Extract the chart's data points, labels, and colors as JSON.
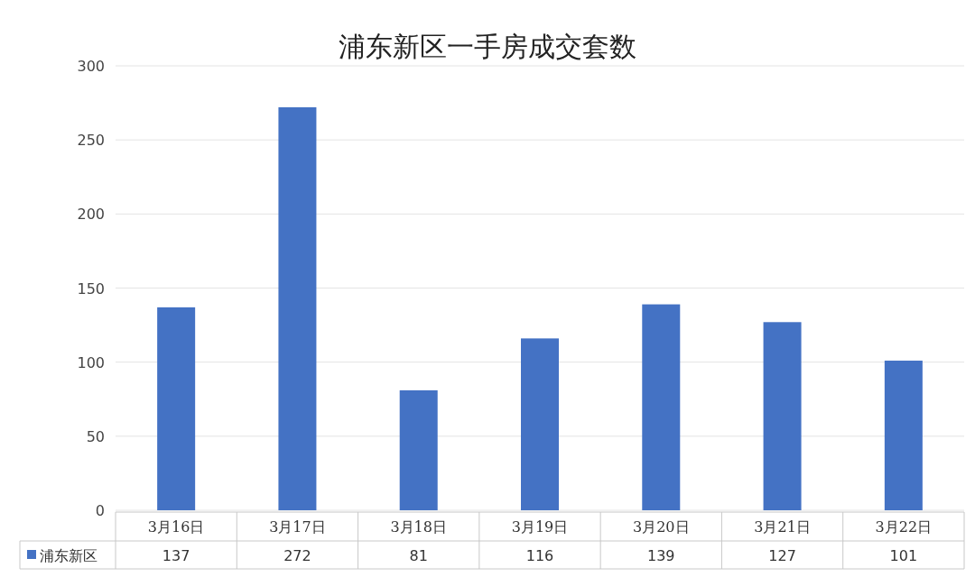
{
  "chart_data": {
    "type": "bar",
    "title": "浦东新区一手房成交套数",
    "categories": [
      "3月16日",
      "3月17日",
      "3月18日",
      "3月19日",
      "3月20日",
      "3月21日",
      "3月22日"
    ],
    "series": [
      {
        "name": "浦东新区",
        "color": "#4472c4",
        "values": [
          137,
          272,
          81,
          116,
          139,
          127,
          101
        ]
      }
    ],
    "ylim": [
      0,
      300
    ],
    "yticks": [
      0,
      50,
      100,
      150,
      200,
      250,
      300
    ],
    "grid": "y",
    "legend": "bottom",
    "data_labels": true
  }
}
